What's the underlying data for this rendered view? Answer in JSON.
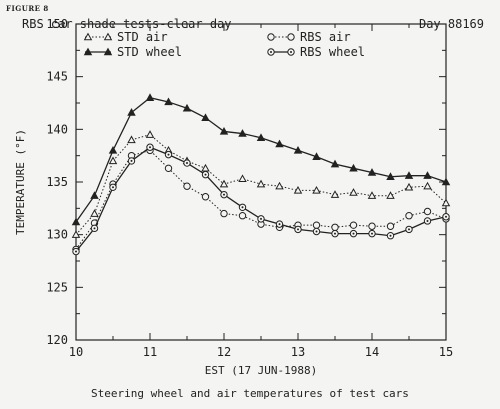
{
  "figure_label": "FIGURE 8",
  "title": "RBS car shade tests-clear day",
  "day_label": "Day 88169",
  "caption": "Steering wheel and air temperatures of test cars",
  "chart_data": {
    "type": "line",
    "xlabel": "EST (17 JUN-1988)",
    "ylabel": "TEMPERATURE (°F)",
    "xlim": [
      10,
      15
    ],
    "ylim": [
      120,
      150
    ],
    "xticks": [
      10,
      11,
      12,
      13,
      14,
      15
    ],
    "yticks": [
      120,
      125,
      130,
      135,
      140,
      145,
      150
    ],
    "grid": false,
    "legend_position": "top-left and top-right inside plot",
    "x": [
      10,
      10.25,
      10.5,
      10.75,
      11,
      11.25,
      11.5,
      11.75,
      12,
      12.25,
      12.5,
      12.75,
      13,
      13.25,
      13.5,
      13.75,
      14,
      14.25,
      14.5,
      14.75,
      15
    ],
    "series": [
      {
        "name": "STD air",
        "marker": "triangle-open",
        "line": "dotted",
        "values": [
          130.0,
          132.0,
          137.0,
          139.0,
          139.5,
          138.0,
          137.0,
          136.3,
          134.8,
          135.3,
          134.8,
          134.6,
          134.2,
          134.2,
          133.8,
          134.0,
          133.7,
          133.7,
          134.5,
          134.6,
          133.0
        ]
      },
      {
        "name": "STD wheel",
        "marker": "triangle-filled",
        "line": "solid",
        "values": [
          131.2,
          133.7,
          138.0,
          141.6,
          143.0,
          142.6,
          142.0,
          141.1,
          139.8,
          139.6,
          139.2,
          138.6,
          138.0,
          137.4,
          136.7,
          136.3,
          135.9,
          135.5,
          135.6,
          135.6,
          135.0
        ]
      },
      {
        "name": "RBS air",
        "marker": "circle-open",
        "line": "dotted",
        "values": [
          128.6,
          131.1,
          134.8,
          137.5,
          138.0,
          136.3,
          134.6,
          133.6,
          132.0,
          131.8,
          131.0,
          130.7,
          130.9,
          130.9,
          130.7,
          130.9,
          130.8,
          130.8,
          131.8,
          132.2,
          131.5
        ]
      },
      {
        "name": "RBS wheel",
        "marker": "circle-open-dot",
        "line": "solid",
        "values": [
          128.4,
          130.6,
          134.5,
          137.0,
          138.3,
          137.6,
          136.8,
          135.7,
          133.8,
          132.6,
          131.5,
          131.0,
          130.5,
          130.3,
          130.1,
          130.1,
          130.1,
          129.9,
          130.5,
          131.3,
          131.7
        ]
      }
    ]
  }
}
